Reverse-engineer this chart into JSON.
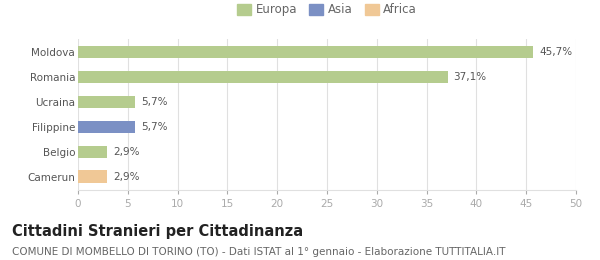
{
  "categories": [
    "Camerun",
    "Belgio",
    "Filippine",
    "Ucraina",
    "Romania",
    "Moldova"
  ],
  "values": [
    2.9,
    2.9,
    5.7,
    5.7,
    37.1,
    45.7
  ],
  "labels": [
    "2,9%",
    "2,9%",
    "5,7%",
    "5,7%",
    "37,1%",
    "45,7%"
  ],
  "colors": [
    "#f0c896",
    "#b5cc8e",
    "#7b90c4",
    "#b5cc8e",
    "#b5cc8e",
    "#b5cc8e"
  ],
  "legend": [
    {
      "label": "Europa",
      "color": "#b5cc8e"
    },
    {
      "label": "Asia",
      "color": "#7b90c4"
    },
    {
      "label": "Africa",
      "color": "#f0c896"
    }
  ],
  "xlim": [
    0,
    50
  ],
  "xticks": [
    0,
    5,
    10,
    15,
    20,
    25,
    30,
    35,
    40,
    45,
    50
  ],
  "title": "Cittadini Stranieri per Cittadinanza",
  "subtitle": "COMUNE DI MOMBELLO DI TORINO (TO) - Dati ISTAT al 1° gennaio - Elaborazione TUTTITALIA.IT",
  "bg_color": "#ffffff",
  "plot_bg_color": "#ffffff",
  "grid_color": "#e0e0e0",
  "bar_height": 0.5,
  "title_fontsize": 10.5,
  "subtitle_fontsize": 7.5,
  "label_fontsize": 7.5,
  "tick_fontsize": 7.5,
  "legend_fontsize": 8.5,
  "ytick_color": "#555555",
  "xtick_color": "#aaaaaa",
  "label_color": "#555555"
}
